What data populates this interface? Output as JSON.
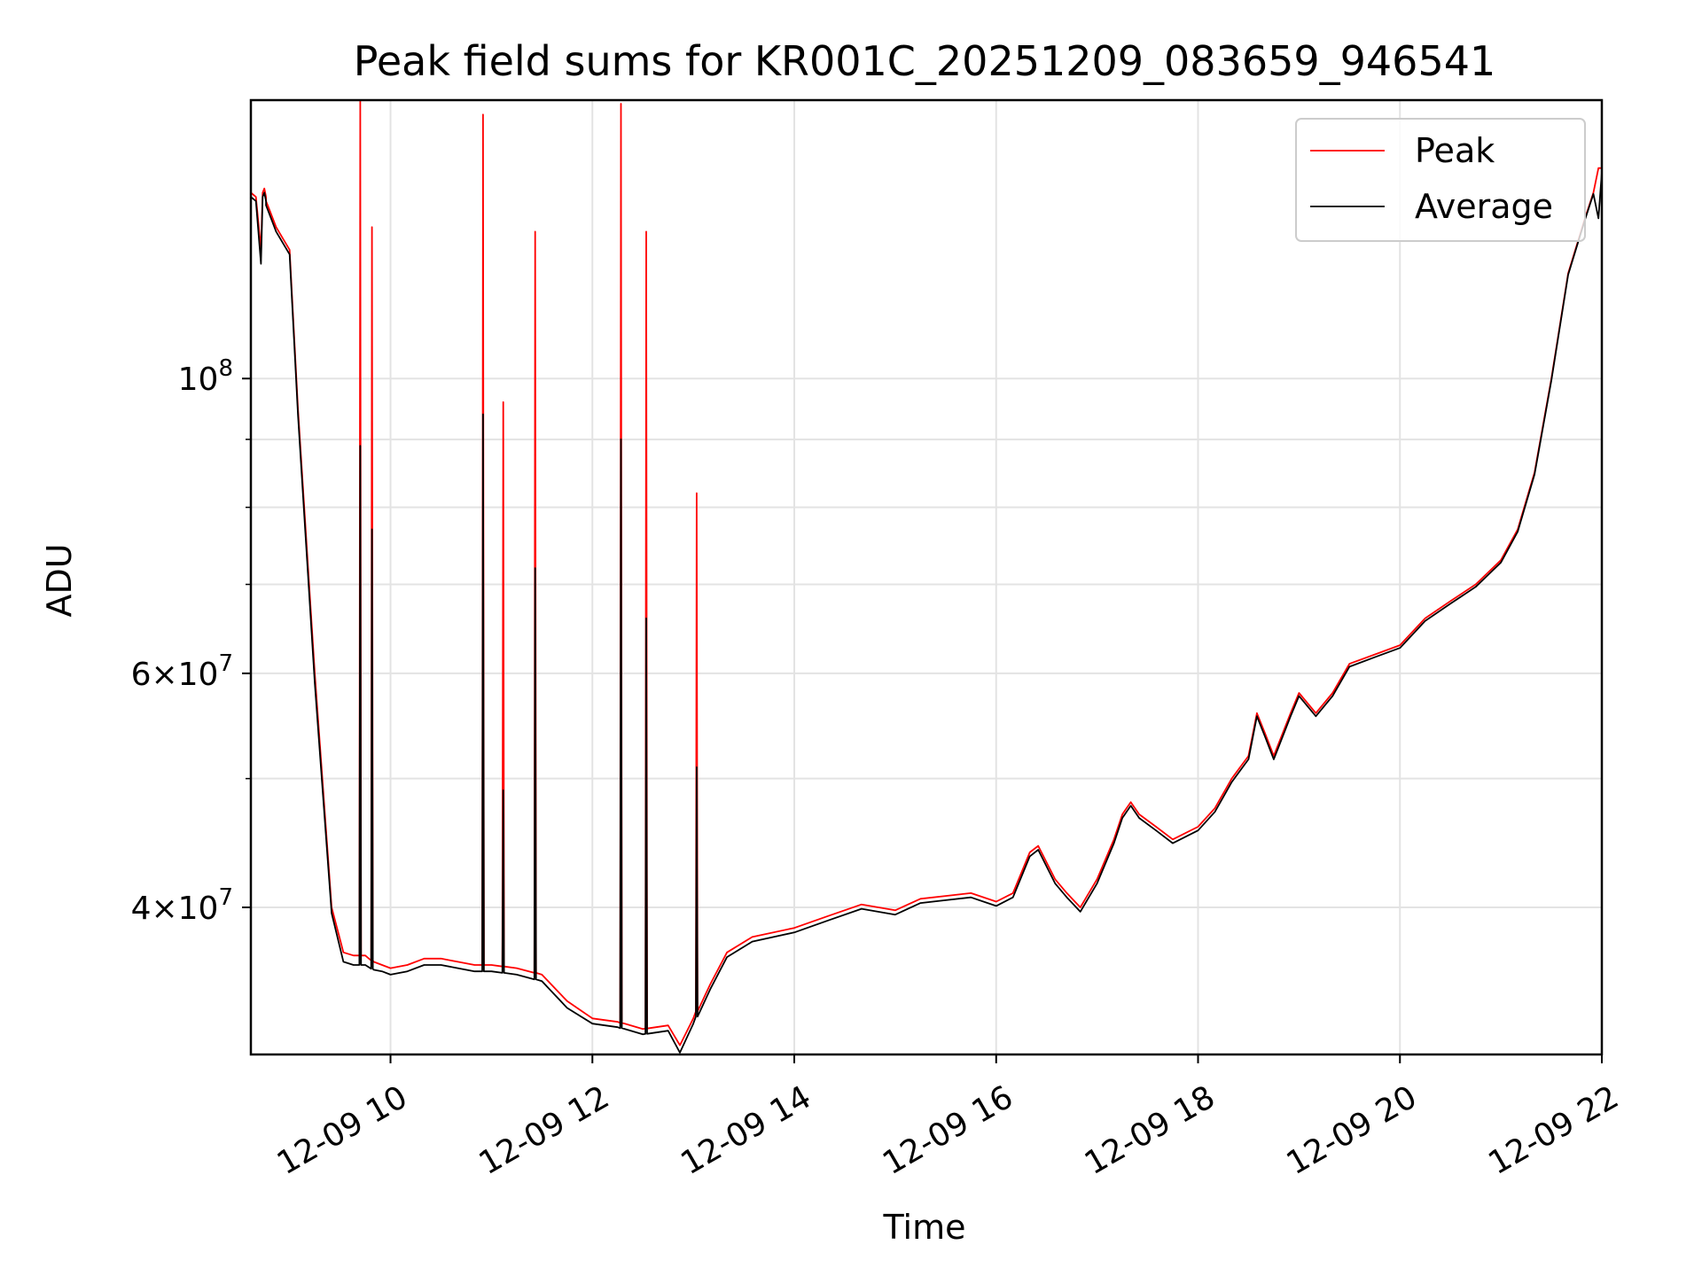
{
  "chart_data": {
    "type": "line",
    "title": "Peak field sums for KR001C_20251209_083659_946541",
    "xlabel": "Time",
    "ylabel": "ADU",
    "x_type": "datetime",
    "xlim": [
      "2025-12-09 08:37",
      "2025-12-09 22:00"
    ],
    "ylim": [
      31000000,
      162000000
    ],
    "y_scale": "log",
    "grid": true,
    "legend_position": "top-right",
    "x_ticks": [
      {
        "value": "2025-12-09 10:00",
        "label": "12-09 10"
      },
      {
        "value": "2025-12-09 12:00",
        "label": "12-09 12"
      },
      {
        "value": "2025-12-09 14:00",
        "label": "12-09 14"
      },
      {
        "value": "2025-12-09 16:00",
        "label": "12-09 16"
      },
      {
        "value": "2025-12-09 18:00",
        "label": "12-09 18"
      },
      {
        "value": "2025-12-09 20:00",
        "label": "12-09 20"
      },
      {
        "value": "2025-12-09 22:00",
        "label": "12-09 22"
      }
    ],
    "y_major_ticks": [
      {
        "value": 40000000,
        "base": "4",
        "exp": "7"
      },
      {
        "value": 60000000,
        "base": "6",
        "exp": "7"
      },
      {
        "value": 100000000,
        "base": "10",
        "exp": "8"
      }
    ],
    "y_minor_ticks": [
      50000000,
      70000000,
      80000000,
      90000000
    ],
    "series": [
      {
        "name": "Peak",
        "color": "#ff0000",
        "x": [
          "2025-12-09 08:37",
          "2025-12-09 08:40",
          "2025-12-09 08:43",
          "2025-12-09 08:44",
          "2025-12-09 08:45",
          "2025-12-09 08:46",
          "2025-12-09 08:46",
          "2025-12-09 08:47",
          "2025-12-09 08:48",
          "2025-12-09 08:52",
          "2025-12-09 09:00",
          "2025-12-09 09:05",
          "2025-12-09 09:15",
          "2025-12-09 09:25",
          "2025-12-09 09:32",
          "2025-12-09 09:38",
          "2025-12-09 09:45",
          "2025-12-09 09:50",
          "2025-12-09 09:55",
          "2025-12-09 10:00",
          "2025-12-09 10:10",
          "2025-12-09 10:20",
          "2025-12-09 10:30",
          "2025-12-09 10:40",
          "2025-12-09 10:50",
          "2025-12-09 11:00",
          "2025-12-09 11:15",
          "2025-12-09 11:30",
          "2025-12-09 11:45",
          "2025-12-09 12:00",
          "2025-12-09 12:15",
          "2025-12-09 12:30",
          "2025-12-09 12:45",
          "2025-12-09 12:52",
          "2025-12-09 13:00",
          "2025-12-09 13:10",
          "2025-12-09 13:20",
          "2025-12-09 13:35",
          "2025-12-09 14:00",
          "2025-12-09 14:20",
          "2025-12-09 14:40",
          "2025-12-09 15:00",
          "2025-12-09 15:15",
          "2025-12-09 15:30",
          "2025-12-09 15:45",
          "2025-12-09 16:00",
          "2025-12-09 16:10",
          "2025-12-09 16:20",
          "2025-12-09 16:25",
          "2025-12-09 16:35",
          "2025-12-09 16:42",
          "2025-12-09 16:50",
          "2025-12-09 17:00",
          "2025-12-09 17:10",
          "2025-12-09 17:15",
          "2025-12-09 17:20",
          "2025-12-09 17:25",
          "2025-12-09 17:35",
          "2025-12-09 17:45",
          "2025-12-09 18:00",
          "2025-12-09 18:10",
          "2025-12-09 18:20",
          "2025-12-09 18:30",
          "2025-12-09 18:35",
          "2025-12-09 18:40",
          "2025-12-09 18:45",
          "2025-12-09 18:55",
          "2025-12-09 19:00",
          "2025-12-09 19:10",
          "2025-12-09 19:20",
          "2025-12-09 19:30",
          "2025-12-09 19:45",
          "2025-12-09 20:00",
          "2025-12-09 20:15",
          "2025-12-09 20:30",
          "2025-12-09 20:45",
          "2025-12-09 21:00",
          "2025-12-09 21:10",
          "2025-12-09 21:20",
          "2025-12-09 21:30",
          "2025-12-09 21:40",
          "2025-12-09 21:50",
          "2025-12-09 21:55",
          "2025-12-09 21:58",
          "2025-12-09 22:00"
        ],
        "y": [
          138000000,
          137000000,
          125000000,
          138000000,
          139000000,
          137000000,
          136000000,
          135000000,
          134000000,
          130000000,
          125000000,
          95000000,
          60000000,
          40000000,
          37000000,
          36800000,
          36800000,
          36400000,
          36200000,
          36000000,
          36200000,
          36600000,
          36600000,
          36400000,
          36200000,
          36200000,
          36000000,
          35600000,
          34000000,
          33000000,
          32800000,
          32400000,
          32600000,
          31500000,
          33000000,
          35000000,
          37000000,
          38000000,
          38600000,
          39400000,
          40200000,
          39800000,
          40600000,
          40800000,
          41000000,
          40400000,
          41000000,
          44000000,
          44500000,
          42000000,
          41000000,
          40000000,
          42000000,
          45000000,
          47000000,
          48000000,
          47000000,
          46000000,
          45000000,
          46000000,
          47500000,
          50000000,
          52000000,
          56000000,
          54000000,
          52000000,
          56000000,
          58000000,
          56000000,
          58000000,
          61000000,
          62000000,
          63000000,
          66000000,
          68000000,
          70000000,
          73000000,
          77000000,
          85000000,
          100000000,
          120000000,
          132000000,
          138000000,
          144000000,
          144000000
        ],
        "spikes": [
          {
            "x": "2025-12-09 09:42",
            "y": 162000000
          },
          {
            "x": "2025-12-09 09:49",
            "y": 130000000
          },
          {
            "x": "2025-12-09 10:55",
            "y": 158000000
          },
          {
            "x": "2025-12-09 11:07",
            "y": 96000000
          },
          {
            "x": "2025-12-09 11:26",
            "y": 129000000
          },
          {
            "x": "2025-12-09 12:17",
            "y": 161000000
          },
          {
            "x": "2025-12-09 12:32",
            "y": 129000000
          },
          {
            "x": "2025-12-09 13:02",
            "y": 82000000
          }
        ]
      },
      {
        "name": "Average",
        "color": "#000000",
        "x": [
          "2025-12-09 08:37",
          "2025-12-09 08:40",
          "2025-12-09 08:43",
          "2025-12-09 08:44",
          "2025-12-09 08:45",
          "2025-12-09 08:46",
          "2025-12-09 08:46",
          "2025-12-09 08:47",
          "2025-12-09 08:48",
          "2025-12-09 08:52",
          "2025-12-09 09:00",
          "2025-12-09 09:05",
          "2025-12-09 09:15",
          "2025-12-09 09:25",
          "2025-12-09 09:32",
          "2025-12-09 09:38",
          "2025-12-09 09:45",
          "2025-12-09 09:50",
          "2025-12-09 09:55",
          "2025-12-09 10:00",
          "2025-12-09 10:10",
          "2025-12-09 10:20",
          "2025-12-09 10:30",
          "2025-12-09 10:40",
          "2025-12-09 10:50",
          "2025-12-09 11:00",
          "2025-12-09 11:15",
          "2025-12-09 11:30",
          "2025-12-09 11:45",
          "2025-12-09 12:00",
          "2025-12-09 12:15",
          "2025-12-09 12:30",
          "2025-12-09 12:45",
          "2025-12-09 12:52",
          "2025-12-09 13:00",
          "2025-12-09 13:10",
          "2025-12-09 13:20",
          "2025-12-09 13:35",
          "2025-12-09 14:00",
          "2025-12-09 14:20",
          "2025-12-09 14:40",
          "2025-12-09 15:00",
          "2025-12-09 15:15",
          "2025-12-09 15:30",
          "2025-12-09 15:45",
          "2025-12-09 16:00",
          "2025-12-09 16:10",
          "2025-12-09 16:20",
          "2025-12-09 16:25",
          "2025-12-09 16:35",
          "2025-12-09 16:42",
          "2025-12-09 16:50",
          "2025-12-09 17:00",
          "2025-12-09 17:10",
          "2025-12-09 17:15",
          "2025-12-09 17:20",
          "2025-12-09 17:25",
          "2025-12-09 17:35",
          "2025-12-09 17:45",
          "2025-12-09 18:00",
          "2025-12-09 18:10",
          "2025-12-09 18:20",
          "2025-12-09 18:30",
          "2025-12-09 18:35",
          "2025-12-09 18:40",
          "2025-12-09 18:45",
          "2025-12-09 18:55",
          "2025-12-09 19:00",
          "2025-12-09 19:10",
          "2025-12-09 19:20",
          "2025-12-09 19:30",
          "2025-12-09 19:45",
          "2025-12-09 20:00",
          "2025-12-09 20:15",
          "2025-12-09 20:30",
          "2025-12-09 20:45",
          "2025-12-09 21:00",
          "2025-12-09 21:10",
          "2025-12-09 21:20",
          "2025-12-09 21:30",
          "2025-12-09 21:40",
          "2025-12-09 21:50",
          "2025-12-09 21:55",
          "2025-12-09 21:58",
          "2025-12-09 22:00"
        ],
        "y": [
          137000000,
          136000000,
          122000000,
          137000000,
          138000000,
          136000000,
          135000000,
          134000000,
          133000000,
          129000000,
          124000000,
          94000000,
          59000000,
          39600000,
          36400000,
          36200000,
          36200000,
          35900000,
          35800000,
          35600000,
          35800000,
          36200000,
          36200000,
          36000000,
          35800000,
          35800000,
          35600000,
          35200000,
          33600000,
          32700000,
          32500000,
          32100000,
          32300000,
          31100000,
          32700000,
          34700000,
          36700000,
          37700000,
          38300000,
          39100000,
          39900000,
          39500000,
          40300000,
          40500000,
          40700000,
          40100000,
          40700000,
          43700000,
          44200000,
          41700000,
          40700000,
          39700000,
          41700000,
          44700000,
          46700000,
          47700000,
          46700000,
          45700000,
          44700000,
          45700000,
          47200000,
          49700000,
          51700000,
          55700000,
          53700000,
          51700000,
          55700000,
          57700000,
          55700000,
          57700000,
          60700000,
          61700000,
          62700000,
          65700000,
          67700000,
          69700000,
          72700000,
          76700000,
          84700000,
          99700000,
          119700000,
          131700000,
          137700000,
          132000000,
          143000000
        ],
        "spikes": [
          {
            "x": "2025-12-09 09:42",
            "y": 89000000
          },
          {
            "x": "2025-12-09 09:49",
            "y": 77000000
          },
          {
            "x": "2025-12-09 10:55",
            "y": 94000000
          },
          {
            "x": "2025-12-09 11:07",
            "y": 49000000
          },
          {
            "x": "2025-12-09 11:26",
            "y": 72000000
          },
          {
            "x": "2025-12-09 12:17",
            "y": 90000000
          },
          {
            "x": "2025-12-09 12:32",
            "y": 66000000
          },
          {
            "x": "2025-12-09 13:02",
            "y": 51000000
          }
        ]
      }
    ]
  }
}
